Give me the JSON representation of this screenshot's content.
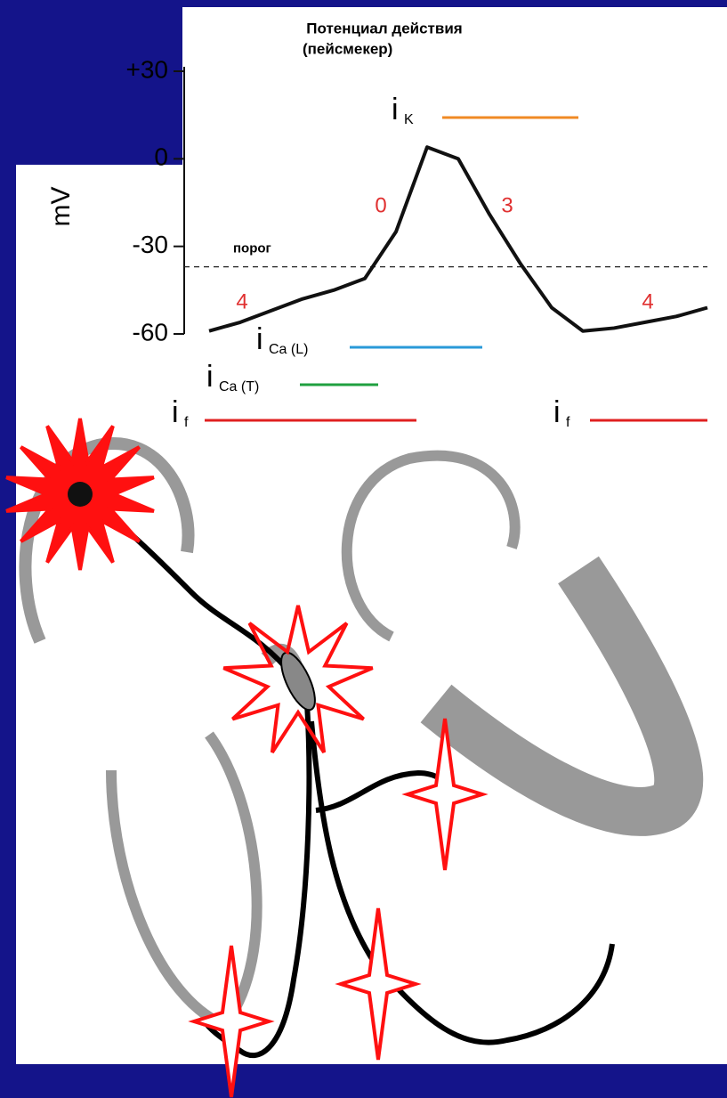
{
  "chart_data": {
    "type": "line",
    "title": "Потенциал действия",
    "subtitle": "(пейсмекер)",
    "ylabel": "mV",
    "categories": [
      null,
      null,
      null,
      null,
      null,
      null,
      null,
      null,
      null,
      null,
      null,
      null,
      null,
      null,
      null,
      null,
      null
    ],
    "values": [
      -59,
      -56,
      -52,
      -48,
      -45,
      -41,
      -25,
      4,
      0,
      -19,
      -36,
      -51,
      -59,
      -58,
      -56,
      -54,
      -51
    ],
    "color": "#111111",
    "ylim": [
      -60,
      30
    ],
    "yticks": [
      {
        "value": 30,
        "label": "+30"
      },
      0,
      -30,
      -60
    ],
    "threshold": {
      "label": "порог",
      "value": -37
    },
    "phase_labels": [
      "0",
      "3",
      "4",
      "4"
    ],
    "phase_color": "#e03030",
    "currents": [
      {
        "symbol": "i",
        "sub": "K",
        "color": "#f08a24"
      },
      {
        "symbol": "i",
        "sub": "Ca (L)",
        "color": "#2a9ad8"
      },
      {
        "symbol": "i",
        "sub": "Ca (T)",
        "color": "#20a040"
      },
      {
        "symbol": "i",
        "sub": "f",
        "color": "#e02020"
      },
      {
        "symbol": "i",
        "sub": "f",
        "color": "#e02020"
      }
    ]
  }
}
